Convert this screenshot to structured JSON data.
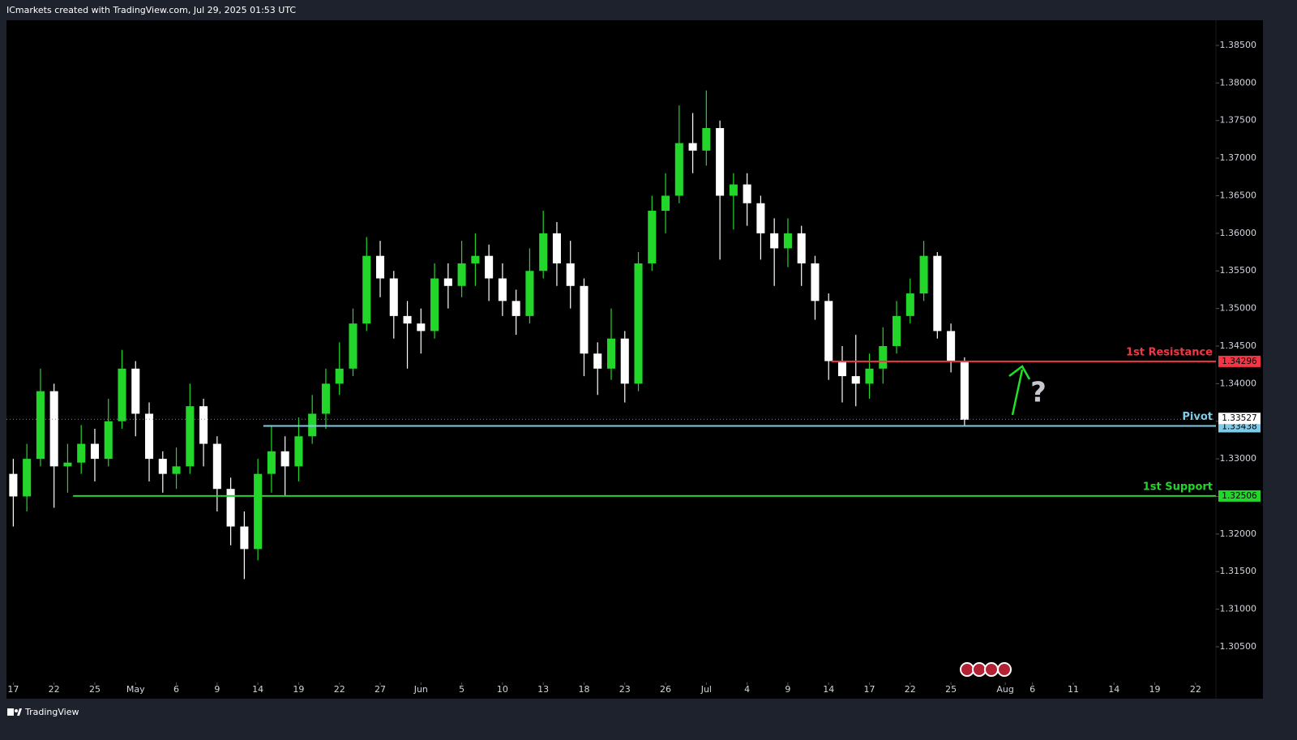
{
  "header": "ICmarkets created with TradingView.com, Jul 29, 2025 01:53 UTC",
  "footer": "TradingView",
  "chart_data": {
    "type": "candlestick",
    "annotation": "?",
    "up_color": "#22d62a",
    "down_color": "#ffffff",
    "x": [
      0,
      1,
      2,
      3,
      4,
      5,
      6,
      7,
      8,
      9,
      10,
      11,
      12,
      13,
      14,
      15,
      16,
      17,
      18,
      19,
      20,
      21,
      22,
      23,
      24,
      25,
      26,
      27,
      28,
      29,
      30,
      31,
      32,
      33,
      34,
      35,
      36,
      37,
      38,
      39,
      40,
      41,
      42,
      43,
      44,
      45,
      46,
      47,
      48,
      49,
      50,
      51,
      52,
      53,
      54,
      55,
      56,
      57,
      58,
      59,
      60,
      61,
      62,
      63,
      64,
      65,
      66,
      67,
      68,
      69,
      70
    ],
    "open": [
      1.328,
      1.325,
      1.33,
      1.339,
      1.329,
      1.3295,
      1.332,
      1.33,
      1.335,
      1.342,
      1.336,
      1.33,
      1.328,
      1.329,
      1.337,
      1.332,
      1.326,
      1.321,
      1.318,
      1.328,
      1.331,
      1.329,
      1.333,
      1.336,
      1.34,
      1.342,
      1.348,
      1.357,
      1.354,
      1.349,
      1.348,
      1.347,
      1.354,
      1.353,
      1.356,
      1.357,
      1.354,
      1.351,
      1.349,
      1.355,
      1.36,
      1.356,
      1.353,
      1.344,
      1.342,
      1.346,
      1.34,
      1.356,
      1.363,
      1.365,
      1.372,
      1.371,
      1.374,
      1.365,
      1.3665,
      1.364,
      1.36,
      1.358,
      1.36,
      1.356,
      1.351,
      1.343,
      1.341,
      1.34,
      1.342,
      1.345,
      1.349,
      1.352,
      1.357,
      1.347,
      1.343
    ],
    "high": [
      1.33,
      1.332,
      1.342,
      1.34,
      1.332,
      1.3345,
      1.334,
      1.338,
      1.3445,
      1.343,
      1.3375,
      1.331,
      1.3315,
      1.34,
      1.338,
      1.333,
      1.3275,
      1.323,
      1.33,
      1.3345,
      1.333,
      1.3355,
      1.3385,
      1.342,
      1.3455,
      1.35,
      1.3595,
      1.359,
      1.355,
      1.351,
      1.35,
      1.356,
      1.356,
      1.359,
      1.36,
      1.3585,
      1.356,
      1.3525,
      1.358,
      1.363,
      1.3615,
      1.359,
      1.354,
      1.3455,
      1.35,
      1.347,
      1.3575,
      1.365,
      1.368,
      1.377,
      1.376,
      1.379,
      1.375,
      1.368,
      1.368,
      1.365,
      1.362,
      1.362,
      1.361,
      1.357,
      1.352,
      1.345,
      1.3465,
      1.344,
      1.3475,
      1.351,
      1.354,
      1.359,
      1.3575,
      1.348,
      1.3435
    ],
    "low": [
      1.321,
      1.323,
      1.329,
      1.3235,
      1.3255,
      1.328,
      1.327,
      1.329,
      1.334,
      1.333,
      1.327,
      1.3255,
      1.326,
      1.328,
      1.329,
      1.323,
      1.3185,
      1.314,
      1.3165,
      1.3255,
      1.325,
      1.327,
      1.332,
      1.334,
      1.3385,
      1.341,
      1.347,
      1.3515,
      1.346,
      1.342,
      1.344,
      1.346,
      1.35,
      1.3515,
      1.353,
      1.351,
      1.349,
      1.3465,
      1.348,
      1.354,
      1.353,
      1.35,
      1.341,
      1.3385,
      1.3405,
      1.3375,
      1.339,
      1.355,
      1.36,
      1.364,
      1.368,
      1.369,
      1.3565,
      1.3605,
      1.361,
      1.3565,
      1.353,
      1.3555,
      1.353,
      1.3485,
      1.3405,
      1.3375,
      1.337,
      1.338,
      1.34,
      1.344,
      1.348,
      1.351,
      1.346,
      1.3415,
      1.3344
    ],
    "close": [
      1.325,
      1.33,
      1.339,
      1.329,
      1.3295,
      1.332,
      1.33,
      1.335,
      1.342,
      1.336,
      1.33,
      1.328,
      1.329,
      1.337,
      1.332,
      1.326,
      1.321,
      1.318,
      1.328,
      1.331,
      1.329,
      1.333,
      1.336,
      1.34,
      1.342,
      1.348,
      1.357,
      1.354,
      1.349,
      1.348,
      1.347,
      1.354,
      1.353,
      1.356,
      1.357,
      1.354,
      1.351,
      1.349,
      1.355,
      1.36,
      1.356,
      1.353,
      1.344,
      1.342,
      1.346,
      1.34,
      1.356,
      1.363,
      1.365,
      1.372,
      1.371,
      1.374,
      1.365,
      1.3665,
      1.364,
      1.36,
      1.358,
      1.36,
      1.356,
      1.351,
      1.343,
      1.341,
      1.34,
      1.342,
      1.345,
      1.349,
      1.352,
      1.357,
      1.347,
      1.343,
      1.3352
    ],
    "xlim": [
      -0.5,
      88.5
    ],
    "ylim": [
      1.30047,
      1.38834
    ],
    "xticks": [
      {
        "value": 0,
        "label": "17"
      },
      {
        "value": 3,
        "label": "22"
      },
      {
        "value": 6,
        "label": "25"
      },
      {
        "value": 9,
        "label": "May"
      },
      {
        "value": 12,
        "label": "6"
      },
      {
        "value": 15,
        "label": "9"
      },
      {
        "value": 18,
        "label": "14"
      },
      {
        "value": 21,
        "label": "19"
      },
      {
        "value": 24,
        "label": "22"
      },
      {
        "value": 27,
        "label": "27"
      },
      {
        "value": 30,
        "label": "Jun"
      },
      {
        "value": 33,
        "label": "5"
      },
      {
        "value": 36,
        "label": "10"
      },
      {
        "value": 39,
        "label": "13"
      },
      {
        "value": 42,
        "label": "18"
      },
      {
        "value": 45,
        "label": "23"
      },
      {
        "value": 48,
        "label": "26"
      },
      {
        "value": 51,
        "label": "Jul"
      },
      {
        "value": 54,
        "label": "4"
      },
      {
        "value": 57,
        "label": "9"
      },
      {
        "value": 60,
        "label": "14"
      },
      {
        "value": 63,
        "label": "17"
      },
      {
        "value": 66,
        "label": "22"
      },
      {
        "value": 69,
        "label": "25"
      },
      {
        "value": 73,
        "label": "Aug"
      },
      {
        "value": 75,
        "label": "6"
      },
      {
        "value": 78,
        "label": "11"
      },
      {
        "value": 81,
        "label": "14"
      },
      {
        "value": 84,
        "label": "19"
      },
      {
        "value": 87,
        "label": "22"
      }
    ],
    "yticks": [
      {
        "value": 1.305,
        "label": "1.30500"
      },
      {
        "value": 1.31,
        "label": "1.31000"
      },
      {
        "value": 1.315,
        "label": "1.31500"
      },
      {
        "value": 1.32,
        "label": "1.32000"
      },
      {
        "value": 1.325,
        "label": "1.32500"
      },
      {
        "value": 1.33,
        "label": "1.33000"
      },
      {
        "value": 1.335,
        "label": "1.33500"
      },
      {
        "value": 1.34,
        "label": "1.34000"
      },
      {
        "value": 1.345,
        "label": "1.34500"
      },
      {
        "value": 1.35,
        "label": "1.35000"
      },
      {
        "value": 1.355,
        "label": "1.35500"
      },
      {
        "value": 1.36,
        "label": "1.36000"
      },
      {
        "value": 1.365,
        "label": "1.36500"
      },
      {
        "value": 1.37,
        "label": "1.37000"
      },
      {
        "value": 1.375,
        "label": "1.37500"
      },
      {
        "value": 1.38,
        "label": "1.38000"
      },
      {
        "value": 1.385,
        "label": "1.38500"
      }
    ],
    "current_price": 1.33527,
    "levels": [
      {
        "name": "1st Resistance",
        "value": 1.34296,
        "color": "#f23645",
        "x_start": 60.2
      },
      {
        "name": "Pivot",
        "value": 1.33438,
        "color": "#7ecbea",
        "x_start": 18.4
      },
      {
        "name": "1st Support",
        "value": 1.32506,
        "color": "#22d62a",
        "x_start": 4.4
      }
    ]
  }
}
